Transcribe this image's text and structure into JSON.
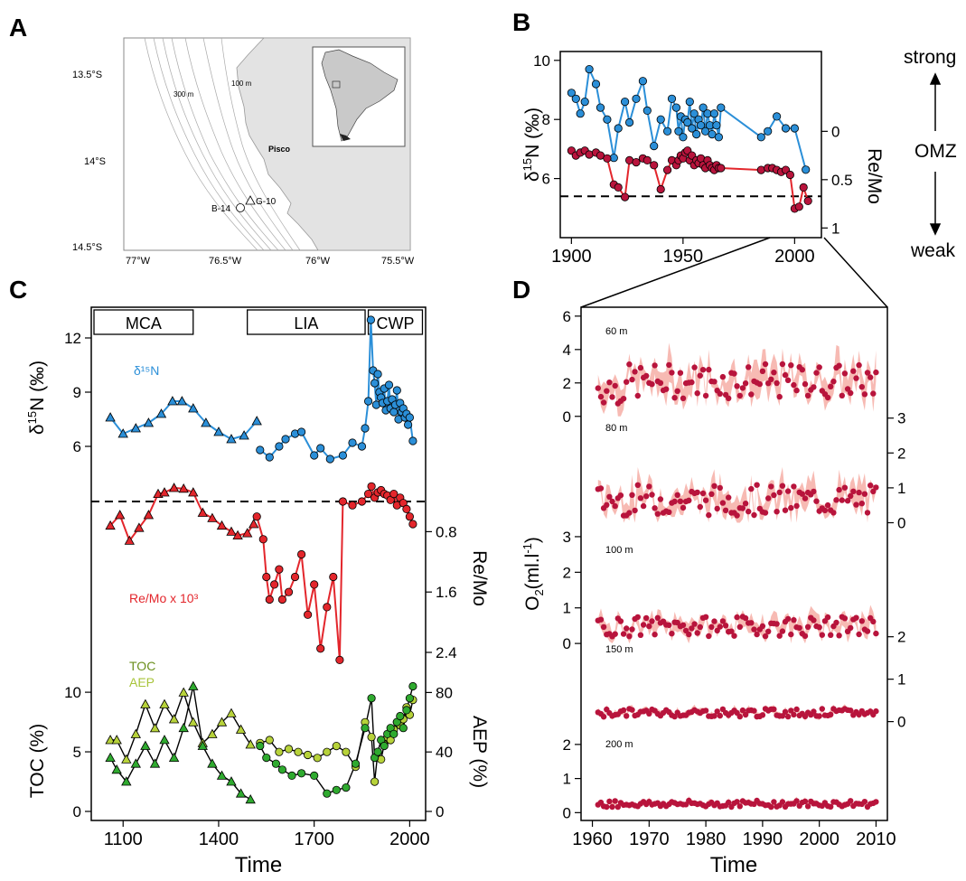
{
  "panels": {
    "A": "A",
    "B": "B",
    "C": "C",
    "D": "D"
  },
  "colors": {
    "blue": "#2b8fd8",
    "red": "#e3262c",
    "darkred": "#b8143c",
    "pink": "#f4a39a",
    "olive": "#6b8f1d",
    "lime": "#b7d23a",
    "green": "#2faa2f",
    "land": "#e3e3e3"
  },
  "map": {
    "lat_labels": [
      "13.5°S",
      "14°S",
      "14.5°S"
    ],
    "lon_labels": [
      "77°W",
      "76.5°W",
      "76°W",
      "75.5°W"
    ],
    "contour_labels": [
      "300 m",
      "100 m"
    ],
    "place": "Pisco",
    "cores": [
      "B-14",
      "G-10"
    ]
  },
  "chart_data": [
    {
      "panel": "B",
      "type": "line",
      "xlabel": "",
      "xticks": [
        1900,
        1950,
        2000
      ],
      "xlim": [
        1895,
        2012
      ],
      "ylabel_left": "δ15N (‰)",
      "yticks_left": [
        6,
        8,
        10
      ],
      "ylim_left": [
        4,
        10.3
      ],
      "ylabel_right": "Re/Mo",
      "yticks_right": [
        "0",
        "0.5",
        "1"
      ],
      "right_range": [
        -0.05,
        1.1
      ],
      "threshold_left": 5.4,
      "side_labels": {
        "top": "strong",
        "middle": "OMZ",
        "bottom": "weak"
      },
      "series": [
        {
          "axis": "left",
          "x": [
            1900,
            1902,
            1904,
            1906,
            1908,
            1911,
            1913,
            1916,
            1919,
            1921,
            1924,
            1926,
            1929,
            1932,
            1934,
            1937,
            1940,
            1943,
            1945,
            1947,
            1948,
            1949,
            1950,
            1951,
            1952,
            1953,
            1954,
            1955,
            1956,
            1957,
            1958,
            1959,
            1960,
            1961,
            1962,
            1963,
            1964,
            1965,
            1966,
            1967,
            1985,
            1988,
            1992,
            1996,
            2000,
            2005
          ],
          "y": [
            8.9,
            8.7,
            8.2,
            8.6,
            9.7,
            9.2,
            8.4,
            8.0,
            6.7,
            7.7,
            8.6,
            7.9,
            8.7,
            9.3,
            8.3,
            7.1,
            8.0,
            7.6,
            8.7,
            8.4,
            7.6,
            8.1,
            7.4,
            8.0,
            7.9,
            8.6,
            7.7,
            8.2,
            7.5,
            8.0,
            7.8,
            8.4,
            7.6,
            8.2,
            7.8,
            7.5,
            8.2,
            7.8,
            7.4,
            8.4,
            7.4,
            7.6,
            8.1,
            7.7,
            7.7,
            6.3
          ]
        },
        {
          "axis": "right",
          "x": [
            1900,
            1902,
            1904,
            1906,
            1908,
            1911,
            1913,
            1916,
            1919,
            1921,
            1924,
            1926,
            1929,
            1932,
            1934,
            1937,
            1940,
            1943,
            1945,
            1947,
            1948,
            1949,
            1950,
            1951,
            1952,
            1953,
            1954,
            1955,
            1956,
            1957,
            1958,
            1959,
            1960,
            1961,
            1962,
            1963,
            1964,
            1965,
            1966,
            1967,
            1985,
            1988,
            1990,
            1992,
            1994,
            1996,
            1998,
            2000,
            2002,
            2004,
            2006
          ],
          "y": [
            0.2,
            0.25,
            0.22,
            0.2,
            0.24,
            0.22,
            0.25,
            0.28,
            0.55,
            0.58,
            0.68,
            0.3,
            0.32,
            0.28,
            0.3,
            0.35,
            0.6,
            0.4,
            0.3,
            0.35,
            0.3,
            0.25,
            0.28,
            0.22,
            0.2,
            0.3,
            0.25,
            0.35,
            0.3,
            0.33,
            0.28,
            0.35,
            0.38,
            0.3,
            0.35,
            0.38,
            0.4,
            0.35,
            0.38,
            0.38,
            0.4,
            0.38,
            0.38,
            0.4,
            0.42,
            0.4,
            0.45,
            0.8,
            0.78,
            0.58,
            0.72
          ]
        }
      ]
    },
    {
      "panel": "C",
      "type": "line",
      "xlabel": "Time",
      "xticks": [
        1100,
        1400,
        1700,
        2000
      ],
      "xlim": [
        1000,
        2050
      ],
      "periods": [
        {
          "label": "MCA",
          "from": 1000,
          "to": 1320
        },
        {
          "label": "LIA",
          "from": 1490,
          "to": 1860
        },
        {
          "label": "CWP",
          "from": 1870,
          "to": 2040
        }
      ],
      "d15n": {
        "label": "δ15N",
        "ylabel": "δ15N (‰)",
        "yticks": [
          6,
          9,
          12
        ],
        "ylim": [
          4.2,
          13.2
        ],
        "triangles": {
          "x": [
            1060,
            1100,
            1140,
            1180,
            1220,
            1255,
            1285,
            1320,
            1360,
            1400,
            1440,
            1480,
            1520
          ],
          "y": [
            7.6,
            6.7,
            7.0,
            7.3,
            7.8,
            8.5,
            8.5,
            8.1,
            7.3,
            6.8,
            6.4,
            6.6,
            7.4
          ]
        },
        "circles": {
          "x": [
            1530,
            1560,
            1590,
            1610,
            1640,
            1660,
            1700,
            1720,
            1750,
            1790,
            1820,
            1850,
            1860,
            1870,
            1878,
            1885,
            1890,
            1895,
            1900,
            1905,
            1910,
            1915,
            1920,
            1925,
            1930,
            1935,
            1940,
            1945,
            1950,
            1955,
            1960,
            1965,
            1970,
            1975,
            1980,
            1985,
            1990,
            1995,
            2000,
            2010
          ],
          "y": [
            5.8,
            5.4,
            6.0,
            6.4,
            6.7,
            6.8,
            5.5,
            5.9,
            5.3,
            5.5,
            6.2,
            6.0,
            7.0,
            8.5,
            13.0,
            10.2,
            9.5,
            8.3,
            10.0,
            9.0,
            8.7,
            8.4,
            9.2,
            8.0,
            8.5,
            9.4,
            8.1,
            8.6,
            7.9,
            8.3,
            9.1,
            7.5,
            8.4,
            7.9,
            8.1,
            7.6,
            7.8,
            7.2,
            7.6,
            6.3
          ]
        }
      },
      "remo": {
        "label": "Re/Mo x 10^3",
        "ylabel": "Re/Mo",
        "yticks": [
          "0.8",
          "1.6",
          "2.4"
        ],
        "threshold": 0.4,
        "triangles": {
          "x": [
            1060,
            1090,
            1120,
            1150,
            1180,
            1210,
            1230,
            1260,
            1290,
            1320,
            1350,
            1380,
            1410,
            1440,
            1460,
            1490,
            1510
          ],
          "y": [
            0.72,
            0.58,
            0.92,
            0.75,
            0.58,
            0.3,
            0.28,
            0.22,
            0.23,
            0.28,
            0.55,
            0.62,
            0.72,
            0.8,
            0.85,
            0.82,
            0.7
          ],
          "ymin": 0.25
        },
        "circles": {
          "x": [
            1520,
            1540,
            1550,
            1560,
            1575,
            1590,
            1600,
            1620,
            1640,
            1660,
            1680,
            1700,
            1720,
            1740,
            1760,
            1780,
            1790,
            1820,
            1850,
            1870,
            1880,
            1890,
            1900,
            1910,
            1920,
            1930,
            1940,
            1950,
            1960,
            1970,
            1980,
            1990,
            2000,
            2010
          ],
          "y": [
            0.6,
            0.9,
            1.4,
            1.7,
            1.5,
            1.3,
            1.7,
            1.6,
            1.4,
            1.1,
            1.9,
            1.5,
            2.35,
            1.8,
            1.4,
            2.5,
            0.4,
            0.45,
            0.4,
            0.3,
            0.2,
            0.35,
            0.28,
            0.25,
            0.3,
            0.32,
            0.38,
            0.3,
            0.45,
            0.35,
            0.42,
            0.5,
            0.6,
            0.7
          ]
        }
      },
      "toc_aep": {
        "labels": [
          "TOC",
          "AEP"
        ],
        "ylabel_left": "TOC (%)",
        "yticks_left": [
          0,
          5,
          10
        ],
        "ylim_left": [
          0,
          11.6
        ],
        "ylabel_right": "AEP (%)",
        "yticks_right": [
          0,
          40,
          80
        ],
        "ylim_right": [
          0,
          93
        ],
        "toc_triangles": {
          "x": [
            1060,
            1080,
            1110,
            1140,
            1170,
            1200,
            1230,
            1260,
            1290,
            1320,
            1350,
            1380,
            1410,
            1440,
            1470,
            1500
          ],
          "y": [
            4.5,
            3.5,
            2.5,
            4.0,
            5.5,
            4.0,
            6.0,
            4.5,
            7.0,
            10.5,
            5.5,
            4.0,
            3.0,
            2.5,
            1.5,
            1.0
          ]
        },
        "aep_triangles": {
          "x": [
            1060,
            1080,
            1110,
            1140,
            1170,
            1200,
            1230,
            1260,
            1290,
            1320,
            1350,
            1380,
            1410,
            1440,
            1470,
            1500
          ],
          "y": [
            48,
            48,
            35,
            52,
            72,
            56,
            72,
            62,
            80,
            60,
            46,
            52,
            60,
            66,
            55,
            45
          ]
        },
        "toc_circles": {
          "x": [
            1530,
            1550,
            1580,
            1600,
            1630,
            1660,
            1700,
            1740,
            1770,
            1800,
            1830,
            1860,
            1880,
            1890,
            1900,
            1910,
            1920,
            1930,
            1940,
            1950,
            1960,
            1970,
            1980,
            1990,
            2000,
            2010
          ],
          "y": [
            5.5,
            4.5,
            4.0,
            3.5,
            3.0,
            3.2,
            3.0,
            1.5,
            1.8,
            2.0,
            4.0,
            7.0,
            9.5,
            4.5,
            5.0,
            6.0,
            5.5,
            6.5,
            7.0,
            6.5,
            7.5,
            8.0,
            7.0,
            8.5,
            9.5,
            10.5
          ]
        },
        "aep_circles": {
          "x": [
            1530,
            1560,
            1590,
            1620,
            1650,
            1680,
            1710,
            1740,
            1770,
            1800,
            1830,
            1860,
            1880,
            1890,
            1900,
            1910,
            1920,
            1930,
            1940,
            1950,
            1960,
            1970,
            1980,
            1990,
            2000,
            2010
          ],
          "y": [
            46,
            48,
            40,
            42,
            40,
            38,
            36,
            40,
            44,
            40,
            30,
            60,
            50,
            20,
            40,
            35,
            45,
            50,
            48,
            55,
            60,
            58,
            62,
            70,
            65,
            75
          ]
        }
      }
    },
    {
      "panel": "D",
      "type": "scatter",
      "xlabel": "Time",
      "ylabel": "O2(ml.l-1)",
      "xticks": [
        1960,
        1970,
        1980,
        1990,
        2000,
        2010
      ],
      "xlim": [
        1958,
        2012
      ],
      "depths": [
        {
          "label": "60 m",
          "axis_side": "left",
          "yticks": [
            0,
            2,
            4,
            6
          ],
          "ylim": [
            -0.5,
            6.1
          ],
          "base": 1.6,
          "amp": 1.3
        },
        {
          "label": "80 m",
          "axis_side": "right",
          "yticks": [
            0,
            1,
            2,
            3
          ],
          "ylim": [
            -0.35,
            3.2
          ],
          "base": 0.6,
          "amp": 0.55
        },
        {
          "label": "100 m",
          "axis_side": "left",
          "yticks": [
            0,
            1,
            2,
            3
          ],
          "ylim": [
            -0.2,
            3.1
          ],
          "base": 0.45,
          "amp": 0.35
        },
        {
          "label": "150 m",
          "axis_side": "right",
          "yticks": [
            0,
            1,
            2
          ],
          "ylim": [
            -0.2,
            2.1
          ],
          "base": 0.2,
          "amp": 0.12
        },
        {
          "label": "200 m",
          "axis_side": "left",
          "yticks": [
            0,
            1,
            2
          ],
          "ylim": [
            -0.15,
            2.5
          ],
          "base": 0.25,
          "amp": 0.12
        }
      ]
    }
  ],
  "labels": {
    "c_d15n": "δ¹⁵N",
    "c_remo": "Re/Mo x 10³",
    "c_toc": "TOC",
    "c_aep": "AEP"
  }
}
